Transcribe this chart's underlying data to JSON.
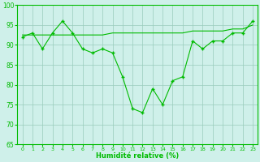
{
  "x": [
    0,
    1,
    2,
    3,
    4,
    5,
    6,
    7,
    8,
    9,
    10,
    11,
    12,
    13,
    14,
    15,
    16,
    17,
    18,
    19,
    20,
    21,
    22,
    23
  ],
  "y_main": [
    92,
    93,
    89,
    93,
    96,
    93,
    89,
    88,
    89,
    88,
    82,
    74,
    73,
    79,
    75,
    81,
    82,
    91,
    89,
    91,
    91,
    93,
    93,
    96
  ],
  "y_trend": [
    92.5,
    92.5,
    92.5,
    92.5,
    92.5,
    92.5,
    92.5,
    92.5,
    92.5,
    93,
    93,
    93,
    93,
    93,
    93,
    93,
    93,
    93.5,
    93.5,
    93.5,
    93.5,
    94,
    94,
    95
  ],
  "xlabel": "Humidité relative (%)",
  "ylim": [
    65,
    100
  ],
  "xlim": [
    -0.5,
    23.5
  ],
  "yticks": [
    65,
    70,
    75,
    80,
    85,
    90,
    95,
    100
  ],
  "xticks": [
    0,
    1,
    2,
    3,
    4,
    5,
    6,
    7,
    8,
    9,
    10,
    11,
    12,
    13,
    14,
    15,
    16,
    17,
    18,
    19,
    20,
    21,
    22,
    23
  ],
  "line_color": "#00bb00",
  "bg_color": "#cff0ea",
  "grid_color": "#99ccbb"
}
